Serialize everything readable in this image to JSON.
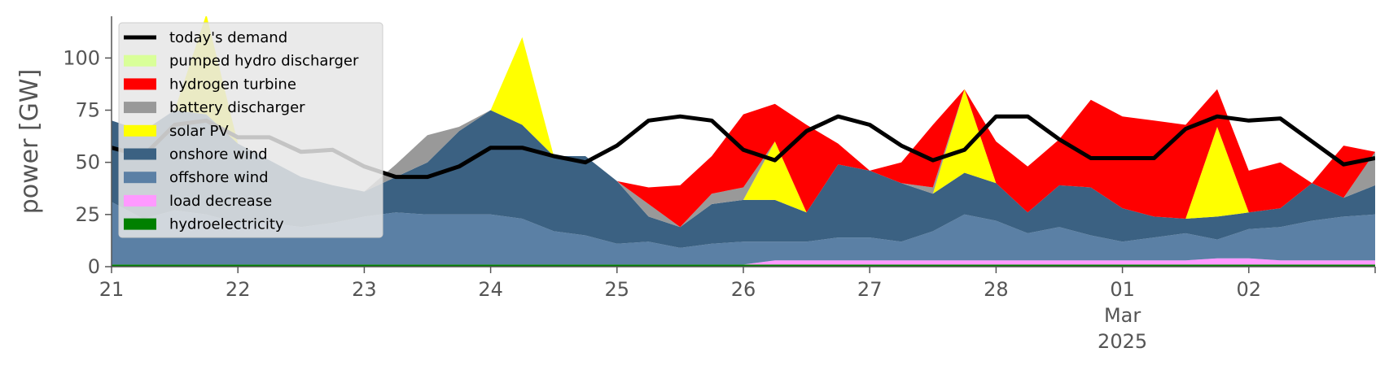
{
  "chart_data": {
    "type": "area",
    "ylabel": "power [GW]",
    "ylim": [
      0,
      120
    ],
    "yticks": [
      0,
      25,
      50,
      75,
      100
    ],
    "xlim": [
      "2025-02-21",
      "2025-03-03"
    ],
    "xticks": [
      "21",
      "22",
      "23",
      "24",
      "25",
      "26",
      "27",
      "28",
      "01",
      "02"
    ],
    "xtick_sublabel_month": "Mar",
    "xtick_sublabel_year": "2025",
    "stacked": true,
    "legend_position": "upper-left",
    "grid": false,
    "hours": [
      0,
      6,
      12,
      18,
      24,
      30,
      36,
      42,
      48,
      54,
      60,
      66,
      72,
      78,
      84,
      90,
      96,
      102,
      108,
      114,
      120,
      126,
      132,
      138,
      144,
      150,
      156,
      162,
      168,
      174,
      180,
      186,
      192,
      198,
      204,
      210,
      216,
      222,
      228,
      234,
      240
    ],
    "series": [
      {
        "name": "hydroelectricity",
        "color": "#008000",
        "values": [
          1,
          1,
          1,
          1,
          1,
          1,
          1,
          1,
          1,
          1,
          1,
          1,
          1,
          1,
          1,
          1,
          1,
          1,
          1,
          1,
          1,
          1,
          1,
          1,
          1,
          1,
          1,
          1,
          1,
          1,
          1,
          1,
          1,
          1,
          1,
          1,
          1,
          1,
          1,
          1,
          1
        ]
      },
      {
        "name": "load decrease",
        "color": "#ff99ff",
        "values": [
          0,
          0,
          0,
          0,
          0,
          0,
          0,
          0,
          0,
          0,
          0,
          0,
          0,
          0,
          0,
          0,
          0,
          0,
          0,
          0,
          0,
          2,
          2,
          2,
          2,
          2,
          2,
          2,
          2,
          2,
          2,
          2,
          2,
          2,
          2,
          3,
          3,
          2,
          2,
          2,
          2
        ]
      },
      {
        "name": "offshore wind",
        "color": "#5b80a5",
        "values": [
          30,
          22,
          26,
          24,
          20,
          20,
          18,
          20,
          23,
          25,
          24,
          24,
          24,
          22,
          16,
          14,
          10,
          11,
          8,
          10,
          11,
          9,
          9,
          11,
          11,
          9,
          14,
          22,
          19,
          13,
          16,
          12,
          9,
          11,
          13,
          9,
          14,
          16,
          19,
          21,
          22
        ]
      },
      {
        "name": "onshore wind",
        "color": "#3b6182",
        "values": [
          39,
          42,
          48,
          48,
          38,
          30,
          24,
          18,
          12,
          17,
          25,
          40,
          50,
          45,
          36,
          38,
          30,
          12,
          10,
          19,
          20,
          20,
          14,
          35,
          32,
          28,
          18,
          20,
          18,
          10,
          20,
          23,
          16,
          10,
          7,
          11,
          8,
          9,
          18,
          9,
          14
        ]
      },
      {
        "name": "solar PV",
        "color": "#ffff00",
        "values": [
          0,
          0,
          0,
          48,
          0,
          0,
          0,
          0,
          0,
          0,
          0,
          0,
          0,
          42,
          0,
          0,
          0,
          0,
          0,
          0,
          0,
          28,
          0,
          0,
          0,
          0,
          0,
          40,
          0,
          0,
          0,
          0,
          0,
          0,
          0,
          43,
          0,
          0,
          0,
          0,
          0
        ]
      },
      {
        "name": "battery discharger",
        "color": "#999999",
        "values": [
          0,
          0,
          0,
          0,
          0,
          0,
          0,
          0,
          0,
          6,
          13,
          2,
          0,
          0,
          0,
          0,
          0,
          6,
          0,
          5,
          6,
          0,
          0,
          0,
          0,
          0,
          3,
          0,
          0,
          0,
          0,
          0,
          0,
          0,
          0,
          0,
          0,
          0,
          0,
          0,
          16
        ]
      },
      {
        "name": "hydrogen turbine",
        "color": "#ff0000",
        "values": [
          0,
          0,
          0,
          0,
          0,
          0,
          0,
          0,
          0,
          0,
          0,
          0,
          0,
          0,
          0,
          0,
          0,
          8,
          20,
          18,
          35,
          18,
          42,
          10,
          0,
          10,
          30,
          0,
          20,
          22,
          22,
          42,
          44,
          46,
          45,
          18,
          20,
          22,
          0,
          25,
          0
        ]
      },
      {
        "name": "pumped hydro discharger",
        "color": "#d9ff99",
        "values": [
          0,
          0,
          0,
          0,
          0,
          0,
          0,
          0,
          0,
          0,
          0,
          0,
          0,
          0,
          0,
          0,
          0,
          0,
          0,
          0,
          0,
          0,
          0,
          0,
          0,
          0,
          0,
          0,
          0,
          0,
          0,
          0,
          0,
          0,
          0,
          0,
          0,
          0,
          0,
          0,
          0
        ]
      }
    ],
    "demand": {
      "name": "today's demand",
      "color": "#000000",
      "values": [
        57,
        53,
        68,
        70,
        62,
        62,
        55,
        56,
        48,
        43,
        43,
        48,
        57,
        57,
        53,
        50,
        58,
        70,
        72,
        70,
        56,
        51,
        65,
        72,
        68,
        58,
        51,
        56,
        72,
        72,
        61,
        52,
        52,
        52,
        66,
        72,
        70,
        71,
        60,
        49,
        52
      ]
    },
    "legend_order": [
      "today's demand",
      "pumped hydro discharger",
      "hydrogen turbine",
      "battery discharger",
      "solar PV",
      "onshore wind",
      "offshore wind",
      "load decrease",
      "hydroelectricity"
    ]
  }
}
